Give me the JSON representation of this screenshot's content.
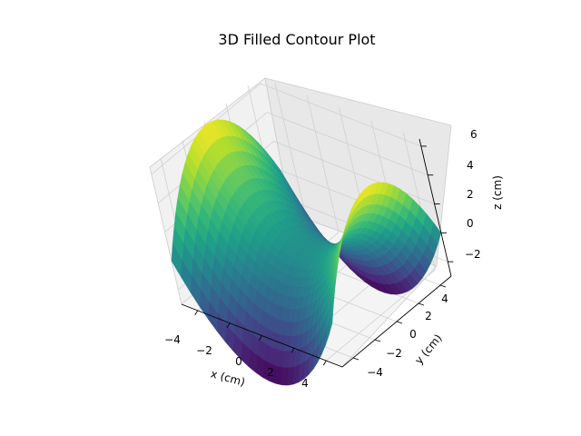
{
  "chart_data": {
    "type": "surface3d",
    "title": "3D Filled Contour Plot",
    "xlabel": "x (cm)",
    "ylabel": "y (cm)",
    "zlabel": "z (cm)",
    "xlim": [
      -5,
      5
    ],
    "ylim": [
      -5,
      5
    ],
    "zlim": [
      -3,
      6.5
    ],
    "xticks": [
      "−4",
      "−2",
      "0",
      "2",
      "4"
    ],
    "yticks": [
      "−4",
      "−2",
      "0",
      "2",
      "4"
    ],
    "zticks": [
      "−2",
      "0",
      "2",
      "4",
      "6"
    ],
    "colormap": "viridis",
    "surface": {
      "formula": "z = (x^2 - y^2) / 4",
      "x_range": [
        -5,
        5
      ],
      "y_range": [
        -5,
        5
      ],
      "samples": 26
    },
    "grid": true
  }
}
